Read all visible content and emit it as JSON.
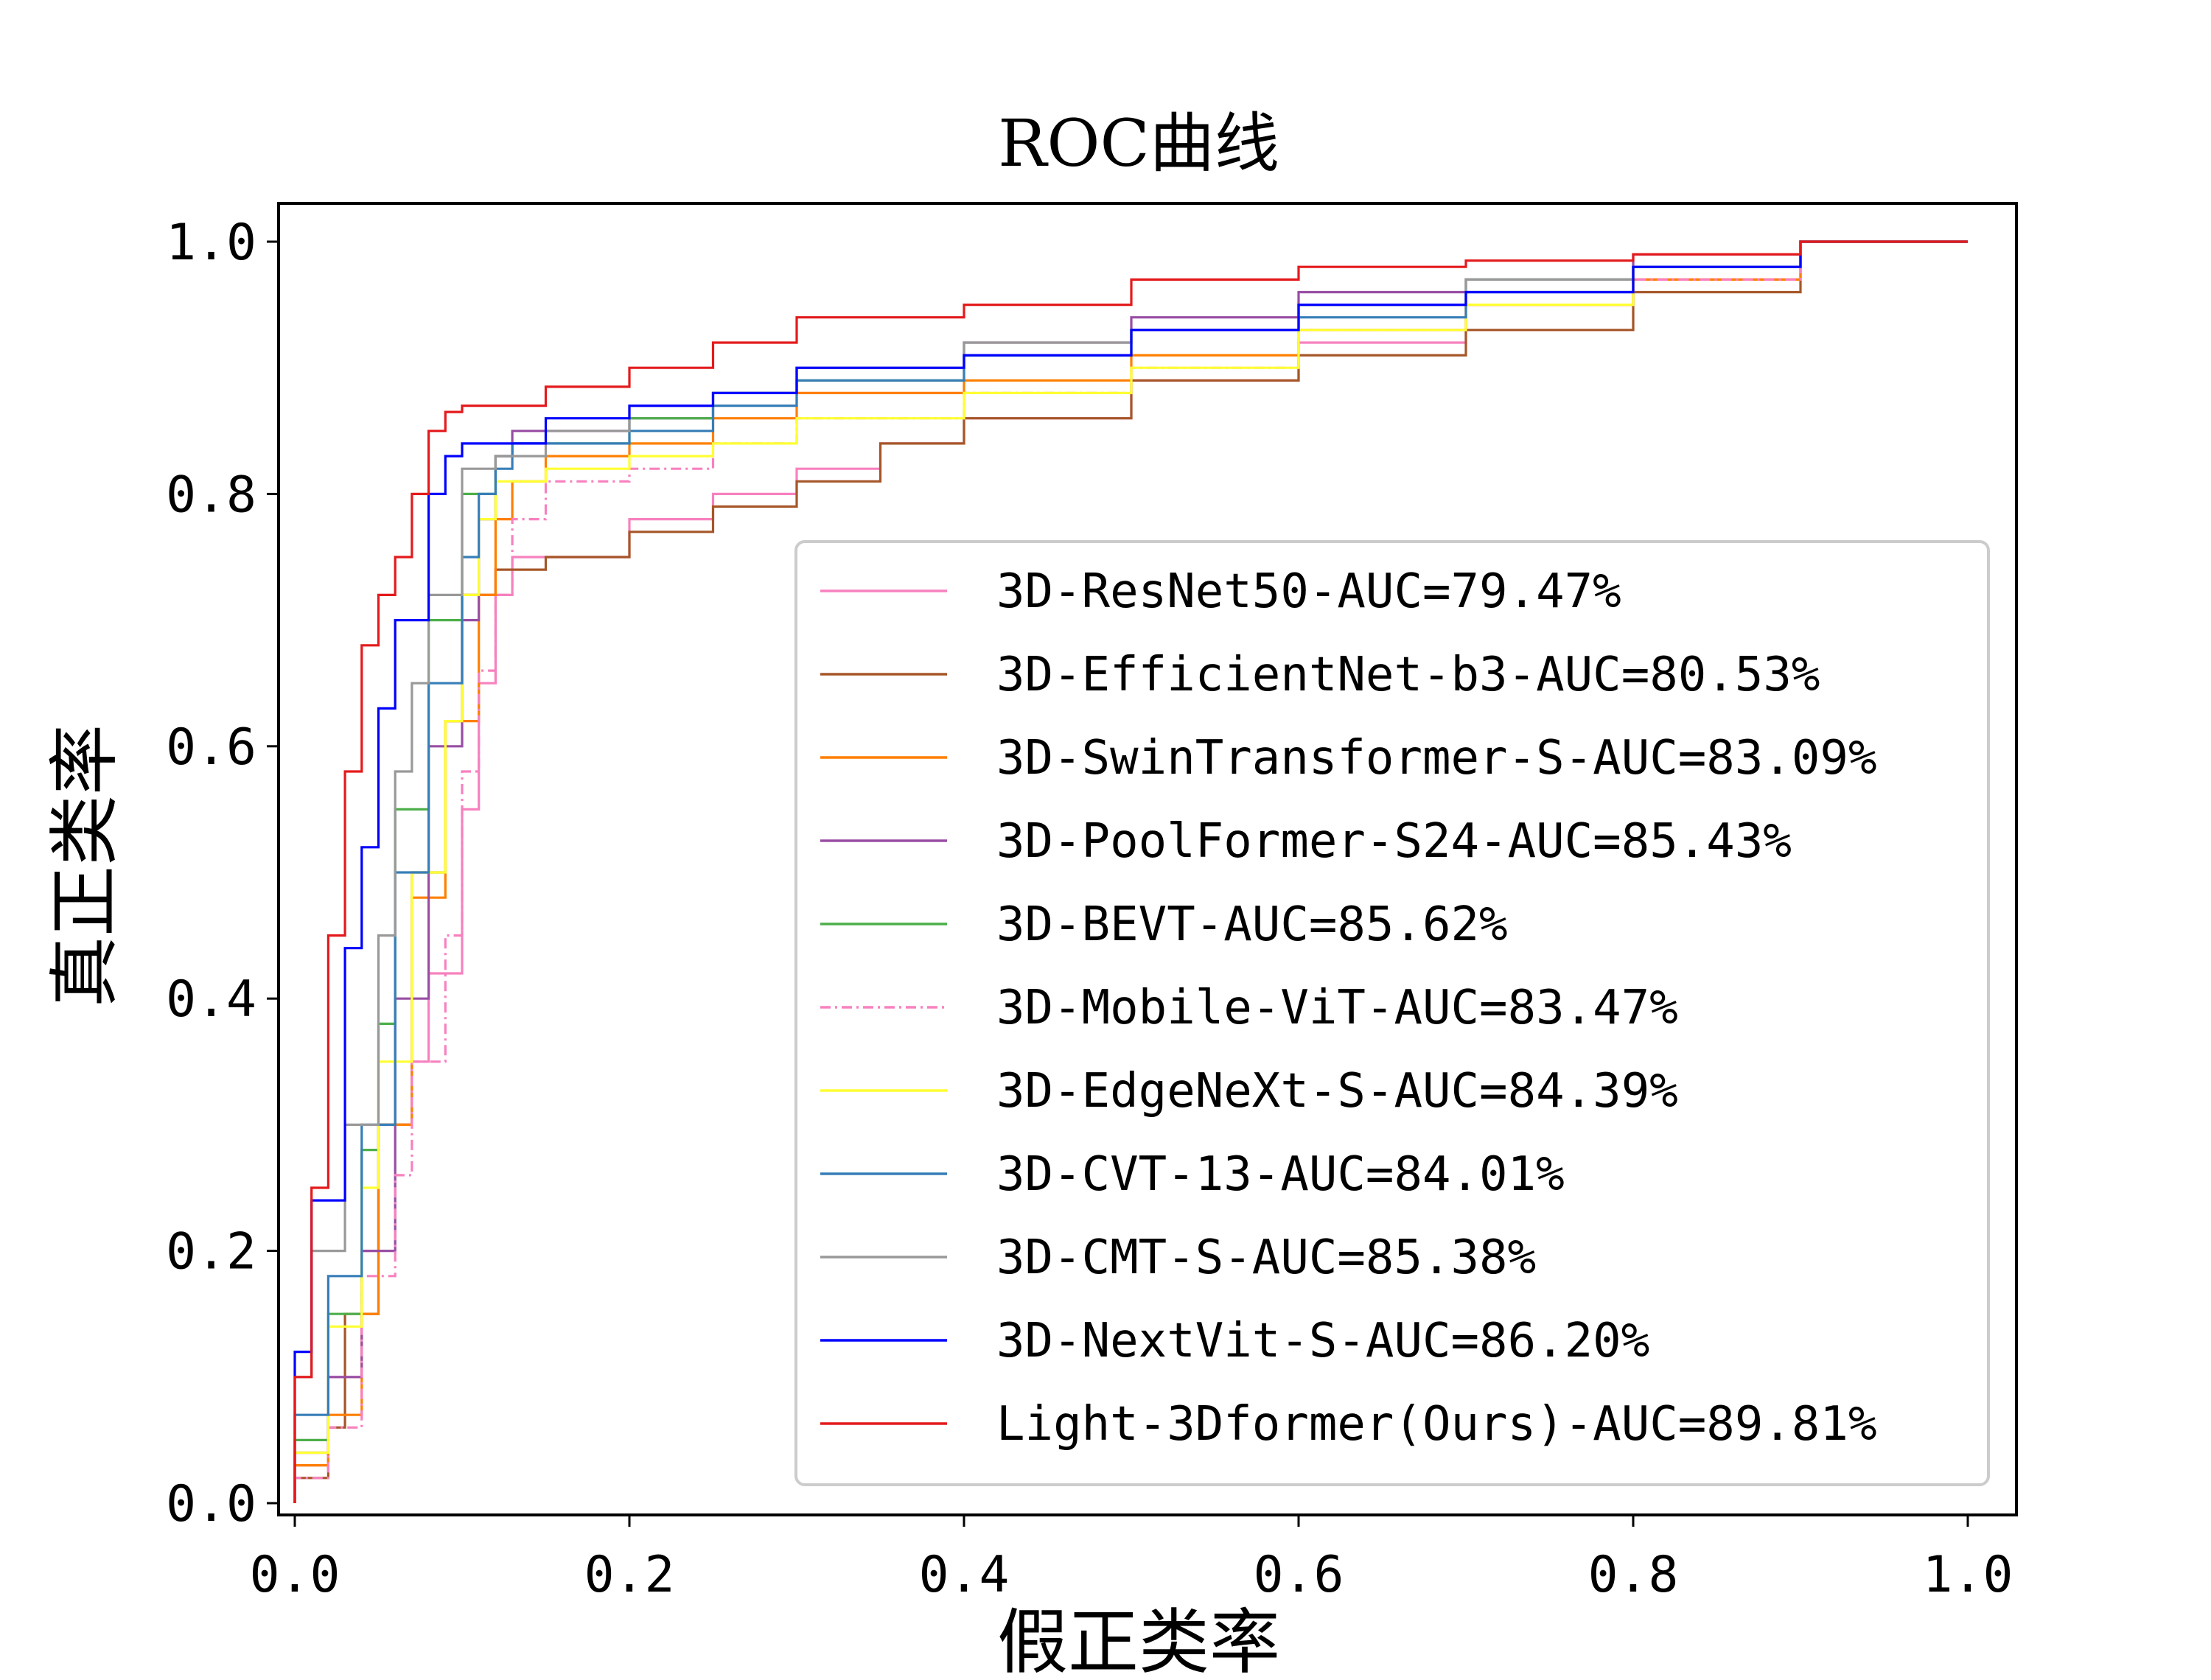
{
  "chart_data": {
    "type": "line",
    "title": "ROC曲线",
    "xlabel": "假正类率",
    "ylabel": "真正类率",
    "xlim": [
      -0.01,
      1.03
    ],
    "ylim": [
      -0.01,
      1.03
    ],
    "xticks": [
      "0.0",
      "0.2",
      "0.4",
      "0.6",
      "0.8",
      "1.0"
    ],
    "yticks": [
      "0.0",
      "0.2",
      "0.4",
      "0.6",
      "0.8",
      "1.0"
    ],
    "grid": false,
    "legend_position": "lower-right",
    "series": [
      {
        "name": "3D-ResNet50-AUC=79.47%",
        "color": "#f781bf",
        "dash": "solid",
        "points": [
          [
            0,
            0
          ],
          [
            0.02,
            0.03
          ],
          [
            0.04,
            0.1
          ],
          [
            0.05,
            0.2
          ],
          [
            0.07,
            0.3
          ],
          [
            0.08,
            0.35
          ],
          [
            0.1,
            0.42
          ],
          [
            0.11,
            0.55
          ],
          [
            0.12,
            0.65
          ],
          [
            0.13,
            0.72
          ],
          [
            0.2,
            0.75
          ],
          [
            0.25,
            0.78
          ],
          [
            0.3,
            0.8
          ],
          [
            0.35,
            0.82
          ],
          [
            0.4,
            0.84
          ],
          [
            0.5,
            0.86
          ],
          [
            0.6,
            0.89
          ],
          [
            0.7,
            0.92
          ],
          [
            0.8,
            0.95
          ],
          [
            0.9,
            0.97
          ],
          [
            1,
            1
          ]
        ]
      },
      {
        "name": "3D-EfficientNet-b3-AUC=80.53%",
        "color": "#a65628",
        "dash": "solid",
        "points": [
          [
            0,
            0
          ],
          [
            0.02,
            0.02
          ],
          [
            0.03,
            0.06
          ],
          [
            0.05,
            0.15
          ],
          [
            0.07,
            0.3
          ],
          [
            0.09,
            0.5
          ],
          [
            0.1,
            0.62
          ],
          [
            0.12,
            0.72
          ],
          [
            0.15,
            0.74
          ],
          [
            0.2,
            0.75
          ],
          [
            0.25,
            0.77
          ],
          [
            0.3,
            0.79
          ],
          [
            0.35,
            0.81
          ],
          [
            0.4,
            0.84
          ],
          [
            0.5,
            0.86
          ],
          [
            0.6,
            0.89
          ],
          [
            0.7,
            0.91
          ],
          [
            0.8,
            0.93
          ],
          [
            0.9,
            0.96
          ],
          [
            1,
            1
          ]
        ]
      },
      {
        "name": "3D-SwinTransformer-S-AUC=83.09%",
        "color": "#ff7f00",
        "dash": "solid",
        "points": [
          [
            0,
            0
          ],
          [
            0.02,
            0.03
          ],
          [
            0.04,
            0.07
          ],
          [
            0.05,
            0.15
          ],
          [
            0.07,
            0.3
          ],
          [
            0.09,
            0.48
          ],
          [
            0.11,
            0.62
          ],
          [
            0.12,
            0.72
          ],
          [
            0.13,
            0.78
          ],
          [
            0.15,
            0.81
          ],
          [
            0.2,
            0.83
          ],
          [
            0.25,
            0.84
          ],
          [
            0.3,
            0.86
          ],
          [
            0.4,
            0.88
          ],
          [
            0.5,
            0.89
          ],
          [
            0.6,
            0.91
          ],
          [
            0.7,
            0.93
          ],
          [
            0.8,
            0.95
          ],
          [
            0.9,
            0.97
          ],
          [
            1,
            1
          ]
        ]
      },
      {
        "name": "3D-PoolFormer-S24-AUC=85.43%",
        "color": "#984ea3",
        "dash": "solid",
        "points": [
          [
            0,
            0
          ],
          [
            0.02,
            0.04
          ],
          [
            0.04,
            0.1
          ],
          [
            0.06,
            0.2
          ],
          [
            0.08,
            0.4
          ],
          [
            0.1,
            0.6
          ],
          [
            0.11,
            0.7
          ],
          [
            0.12,
            0.78
          ],
          [
            0.13,
            0.83
          ],
          [
            0.2,
            0.85
          ],
          [
            0.25,
            0.86
          ],
          [
            0.3,
            0.88
          ],
          [
            0.4,
            0.9
          ],
          [
            0.5,
            0.92
          ],
          [
            0.6,
            0.94
          ],
          [
            0.7,
            0.96
          ],
          [
            0.8,
            0.97
          ],
          [
            0.9,
            0.99
          ],
          [
            1,
            1
          ]
        ]
      },
      {
        "name": "3D-BEVT-AUC=85.62%",
        "color": "#4daf4a",
        "dash": "solid",
        "points": [
          [
            0,
            0
          ],
          [
            0.02,
            0.05
          ],
          [
            0.04,
            0.15
          ],
          [
            0.05,
            0.28
          ],
          [
            0.06,
            0.38
          ],
          [
            0.08,
            0.55
          ],
          [
            0.1,
            0.7
          ],
          [
            0.12,
            0.8
          ],
          [
            0.13,
            0.83
          ],
          [
            0.2,
            0.84
          ],
          [
            0.25,
            0.86
          ],
          [
            0.3,
            0.88
          ],
          [
            0.4,
            0.89
          ],
          [
            0.5,
            0.91
          ],
          [
            0.6,
            0.93
          ],
          [
            0.7,
            0.95
          ],
          [
            0.8,
            0.97
          ],
          [
            0.9,
            0.98
          ],
          [
            1,
            1
          ]
        ]
      },
      {
        "name": "3D-Mobile-ViT-AUC=83.47%",
        "color": "#f781bf",
        "dash": "dashdot",
        "points": [
          [
            0,
            0
          ],
          [
            0.02,
            0.02
          ],
          [
            0.04,
            0.06
          ],
          [
            0.06,
            0.18
          ],
          [
            0.07,
            0.26
          ],
          [
            0.09,
            0.35
          ],
          [
            0.1,
            0.45
          ],
          [
            0.11,
            0.58
          ],
          [
            0.12,
            0.66
          ],
          [
            0.13,
            0.72
          ],
          [
            0.15,
            0.78
          ],
          [
            0.2,
            0.81
          ],
          [
            0.25,
            0.82
          ],
          [
            0.3,
            0.84
          ],
          [
            0.4,
            0.86
          ],
          [
            0.5,
            0.88
          ],
          [
            0.6,
            0.9
          ],
          [
            0.7,
            0.93
          ],
          [
            0.8,
            0.95
          ],
          [
            0.9,
            0.97
          ],
          [
            1,
            1
          ]
        ]
      },
      {
        "name": "3D-EdgeNeXt-S-AUC=84.39%",
        "color": "#ffff33",
        "dash": "solid",
        "points": [
          [
            0,
            0
          ],
          [
            0.02,
            0.04
          ],
          [
            0.04,
            0.14
          ],
          [
            0.05,
            0.25
          ],
          [
            0.07,
            0.35
          ],
          [
            0.09,
            0.5
          ],
          [
            0.1,
            0.62
          ],
          [
            0.11,
            0.72
          ],
          [
            0.12,
            0.78
          ],
          [
            0.15,
            0.81
          ],
          [
            0.2,
            0.82
          ],
          [
            0.25,
            0.83
          ],
          [
            0.3,
            0.84
          ],
          [
            0.4,
            0.86
          ],
          [
            0.5,
            0.88
          ],
          [
            0.6,
            0.9
          ],
          [
            0.7,
            0.93
          ],
          [
            0.8,
            0.95
          ],
          [
            0.9,
            0.98
          ],
          [
            1,
            1
          ]
        ]
      },
      {
        "name": "3D-CVT-13-AUC=84.01%",
        "color": "#377eb8",
        "dash": "solid",
        "points": [
          [
            0,
            0
          ],
          [
            0.02,
            0.07
          ],
          [
            0.04,
            0.18
          ],
          [
            0.06,
            0.3
          ],
          [
            0.08,
            0.5
          ],
          [
            0.1,
            0.65
          ],
          [
            0.11,
            0.75
          ],
          [
            0.12,
            0.8
          ],
          [
            0.13,
            0.82
          ],
          [
            0.2,
            0.84
          ],
          [
            0.25,
            0.85
          ],
          [
            0.3,
            0.87
          ],
          [
            0.4,
            0.89
          ],
          [
            0.5,
            0.91
          ],
          [
            0.6,
            0.93
          ],
          [
            0.7,
            0.94
          ],
          [
            0.8,
            0.96
          ],
          [
            0.9,
            0.98
          ],
          [
            1,
            1
          ]
        ]
      },
      {
        "name": "3D-CMT-S-AUC=85.38%",
        "color": "#999999",
        "dash": "solid",
        "points": [
          [
            0,
            0
          ],
          [
            0.01,
            0.1
          ],
          [
            0.03,
            0.2
          ],
          [
            0.05,
            0.3
          ],
          [
            0.06,
            0.45
          ],
          [
            0.07,
            0.58
          ],
          [
            0.08,
            0.65
          ],
          [
            0.1,
            0.72
          ],
          [
            0.12,
            0.82
          ],
          [
            0.15,
            0.83
          ],
          [
            0.2,
            0.85
          ],
          [
            0.25,
            0.87
          ],
          [
            0.3,
            0.88
          ],
          [
            0.4,
            0.9
          ],
          [
            0.5,
            0.92
          ],
          [
            0.6,
            0.93
          ],
          [
            0.7,
            0.95
          ],
          [
            0.8,
            0.97
          ],
          [
            0.9,
            0.98
          ],
          [
            1,
            1
          ]
        ]
      },
      {
        "name": "3D-NextVit-S-AUC=86.20%",
        "color": "#0000ff",
        "dash": "solid",
        "points": [
          [
            0,
            0
          ],
          [
            0.01,
            0.12
          ],
          [
            0.03,
            0.24
          ],
          [
            0.04,
            0.44
          ],
          [
            0.05,
            0.52
          ],
          [
            0.06,
            0.63
          ],
          [
            0.08,
            0.7
          ],
          [
            0.09,
            0.8
          ],
          [
            0.1,
            0.83
          ],
          [
            0.15,
            0.84
          ],
          [
            0.2,
            0.86
          ],
          [
            0.25,
            0.87
          ],
          [
            0.3,
            0.88
          ],
          [
            0.4,
            0.9
          ],
          [
            0.5,
            0.91
          ],
          [
            0.6,
            0.93
          ],
          [
            0.7,
            0.95
          ],
          [
            0.8,
            0.96
          ],
          [
            0.9,
            0.98
          ],
          [
            1,
            1
          ]
        ]
      },
      {
        "name": "Light-3Dformer(Ours)-AUC=89.81%",
        "color": "#e41a1c",
        "dash": "solid",
        "points": [
          [
            0,
            0
          ],
          [
            0.01,
            0.1
          ],
          [
            0.02,
            0.25
          ],
          [
            0.03,
            0.45
          ],
          [
            0.04,
            0.58
          ],
          [
            0.05,
            0.68
          ],
          [
            0.06,
            0.72
          ],
          [
            0.07,
            0.75
          ],
          [
            0.08,
            0.8
          ],
          [
            0.09,
            0.85
          ],
          [
            0.1,
            0.865
          ],
          [
            0.15,
            0.87
          ],
          [
            0.2,
            0.885
          ],
          [
            0.25,
            0.9
          ],
          [
            0.3,
            0.92
          ],
          [
            0.4,
            0.94
          ],
          [
            0.5,
            0.95
          ],
          [
            0.6,
            0.97
          ],
          [
            0.7,
            0.98
          ],
          [
            0.8,
            0.985
          ],
          [
            0.9,
            0.99
          ],
          [
            1,
            1
          ]
        ]
      }
    ]
  }
}
